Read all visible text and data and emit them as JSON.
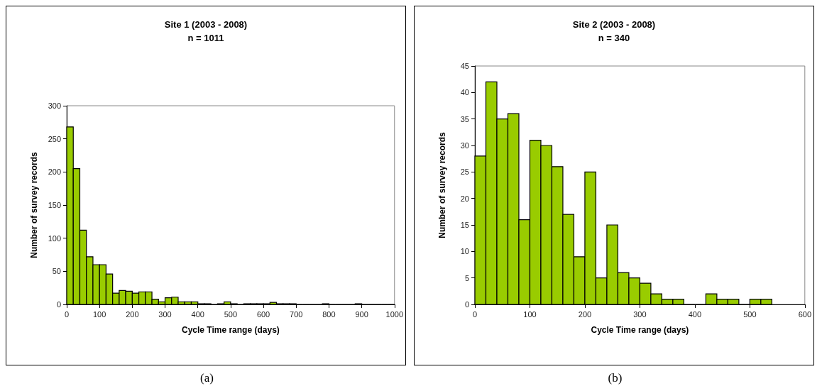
{
  "chart_data": [
    {
      "type": "histogram",
      "title": "Site 1 (2003 - 2008)",
      "subtitle": "n = 1011",
      "xlabel": "Cycle Time range (days)",
      "ylabel": "Number of survey records",
      "annotations": [
        "(a)"
      ],
      "color": "#99cc00",
      "bins": [
        0,
        20,
        40,
        60,
        80,
        100,
        120,
        140,
        160,
        180,
        200,
        220,
        240,
        260,
        280,
        300,
        320,
        340,
        360,
        380,
        400,
        420,
        440,
        460,
        480,
        500,
        520,
        540,
        560,
        580,
        600,
        620,
        640,
        660,
        680,
        700,
        720,
        740,
        760,
        780,
        800,
        820,
        840,
        860,
        880,
        900,
        920,
        940,
        960,
        980,
        1000
      ],
      "values": [
        268,
        205,
        112,
        72,
        60,
        60,
        46,
        17,
        21,
        20,
        17,
        19,
        19,
        8,
        4,
        10,
        11,
        4,
        4,
        4,
        1,
        1,
        0,
        1,
        4,
        1,
        0,
        1,
        1,
        1,
        1,
        3,
        1,
        1,
        1,
        0,
        0,
        0,
        0,
        1,
        0,
        0,
        0,
        0,
        1,
        0,
        0,
        0,
        0,
        0
      ],
      "xlim": [
        0,
        1000
      ],
      "xticks": [
        0,
        100,
        200,
        300,
        400,
        500,
        600,
        700,
        800,
        900,
        1000
      ],
      "ylim": [
        0,
        300
      ],
      "yticks": [
        0,
        50,
        100,
        150,
        200,
        250,
        300
      ],
      "grid": false
    },
    {
      "type": "histogram",
      "title": "Site 2 (2003 - 2008)",
      "subtitle": "n = 340",
      "xlabel": "Cycle Time range (days)",
      "ylabel": "Number of survey records",
      "annotations": [
        "(b)"
      ],
      "color": "#99cc00",
      "bins": [
        0,
        20,
        40,
        60,
        80,
        100,
        120,
        140,
        160,
        180,
        200,
        220,
        240,
        260,
        280,
        300,
        320,
        340,
        360,
        380,
        400,
        420,
        440,
        460,
        480,
        500,
        520,
        540
      ],
      "values": [
        28,
        42,
        35,
        36,
        16,
        31,
        30,
        26,
        17,
        9,
        25,
        5,
        15,
        6,
        5,
        4,
        2,
        1,
        1,
        0,
        0,
        2,
        1,
        1,
        0,
        1,
        1
      ],
      "xlim": [
        0,
        600
      ],
      "xticks": [
        0,
        100,
        200,
        300,
        400,
        500,
        600
      ],
      "ylim": [
        0,
        45
      ],
      "yticks": [
        0,
        5,
        10,
        15,
        20,
        25,
        30,
        35,
        40,
        45
      ],
      "grid": false
    }
  ]
}
